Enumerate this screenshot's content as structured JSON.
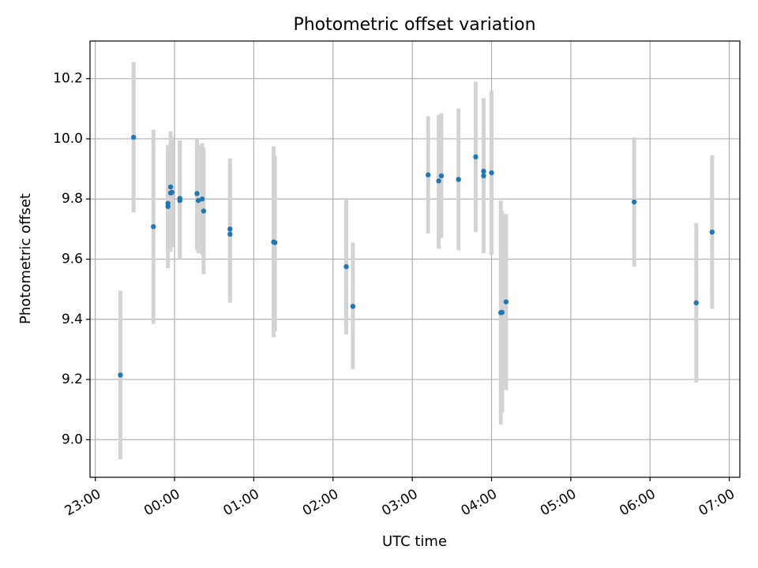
{
  "chart_data": {
    "type": "scatter",
    "title": "Photometric offset variation",
    "xlabel": "UTC time",
    "ylabel": "Photometric offset",
    "x_unit": "UTC time of day (HH:MM)",
    "xlim": [
      "22:56",
      "07:08"
    ],
    "ylim": [
      8.875,
      10.325
    ],
    "x_ticks": [
      "23:00",
      "00:00",
      "01:00",
      "02:00",
      "03:00",
      "04:00",
      "05:00",
      "06:00",
      "07:00"
    ],
    "y_ticks": [
      9.0,
      9.2,
      9.4,
      9.6,
      9.8,
      10.0,
      10.2
    ],
    "y_tick_labels": [
      "9.0",
      "9.2",
      "9.4",
      "9.6",
      "9.8",
      "10.0",
      "10.2"
    ],
    "grid": true,
    "point_color": "#1f77b4",
    "errorbar_color": "#d3d3d3",
    "points": [
      {
        "x": "23:19",
        "y": 9.215,
        "lo": 8.935,
        "hi": 9.495
      },
      {
        "x": "23:29",
        "y": 10.005,
        "lo": 9.755,
        "hi": 10.255
      },
      {
        "x": "23:44",
        "y": 9.708,
        "lo": 9.385,
        "hi": 10.03
      },
      {
        "x": "23:55",
        "y": 9.775,
        "lo": 9.57,
        "hi": 9.98
      },
      {
        "x": "23:55",
        "y": 9.785,
        "lo": 9.62,
        "hi": 9.95
      },
      {
        "x": "23:57",
        "y": 9.84,
        "lo": 9.65,
        "hi": 10.025
      },
      {
        "x": "23:57",
        "y": 9.82,
        "lo": 9.625,
        "hi": 10.015
      },
      {
        "x": "23:58",
        "y": 9.822,
        "lo": 9.64,
        "hi": 10.005
      },
      {
        "x": "00:04",
        "y": 9.795,
        "lo": 9.6,
        "hi": 9.99
      },
      {
        "x": "00:04",
        "y": 9.802,
        "lo": 9.615,
        "hi": 9.995
      },
      {
        "x": "00:17",
        "y": 9.818,
        "lo": 9.63,
        "hi": 10.0
      },
      {
        "x": "00:18",
        "y": 9.795,
        "lo": 9.62,
        "hi": 9.98
      },
      {
        "x": "00:21",
        "y": 9.8,
        "lo": 9.615,
        "hi": 9.985
      },
      {
        "x": "00:22",
        "y": 9.76,
        "lo": 9.55,
        "hi": 9.97
      },
      {
        "x": "00:42",
        "y": 9.7,
        "lo": 9.455,
        "hi": 9.935
      },
      {
        "x": "00:42",
        "y": 9.683,
        "lo": 9.465,
        "hi": 9.91
      },
      {
        "x": "01:15",
        "y": 9.657,
        "lo": 9.34,
        "hi": 9.975
      },
      {
        "x": "01:16",
        "y": 9.655,
        "lo": 9.36,
        "hi": 9.945
      },
      {
        "x": "02:10",
        "y": 9.575,
        "lo": 9.35,
        "hi": 9.8
      },
      {
        "x": "02:15",
        "y": 9.443,
        "lo": 9.235,
        "hi": 9.655
      },
      {
        "x": "03:12",
        "y": 9.88,
        "lo": 9.685,
        "hi": 10.075
      },
      {
        "x": "03:20",
        "y": 9.86,
        "lo": 9.635,
        "hi": 10.08
      },
      {
        "x": "03:22",
        "y": 9.877,
        "lo": 9.67,
        "hi": 10.085
      },
      {
        "x": "03:35",
        "y": 9.865,
        "lo": 9.63,
        "hi": 10.1
      },
      {
        "x": "03:48",
        "y": 9.94,
        "lo": 9.69,
        "hi": 10.19
      },
      {
        "x": "03:54",
        "y": 9.892,
        "lo": 9.645,
        "hi": 10.135
      },
      {
        "x": "03:54",
        "y": 9.877,
        "lo": 9.62,
        "hi": 10.13
      },
      {
        "x": "04:00",
        "y": 9.887,
        "lo": 9.615,
        "hi": 10.16
      },
      {
        "x": "04:07",
        "y": 9.422,
        "lo": 9.05,
        "hi": 9.795
      },
      {
        "x": "04:08",
        "y": 9.423,
        "lo": 9.09,
        "hi": 9.76
      },
      {
        "x": "04:11",
        "y": 9.458,
        "lo": 9.165,
        "hi": 9.75
      },
      {
        "x": "05:48",
        "y": 9.79,
        "lo": 9.575,
        "hi": 10.005
      },
      {
        "x": "06:35",
        "y": 9.455,
        "lo": 9.19,
        "hi": 9.72
      },
      {
        "x": "06:47",
        "y": 9.69,
        "lo": 9.435,
        "hi": 9.945
      }
    ]
  }
}
